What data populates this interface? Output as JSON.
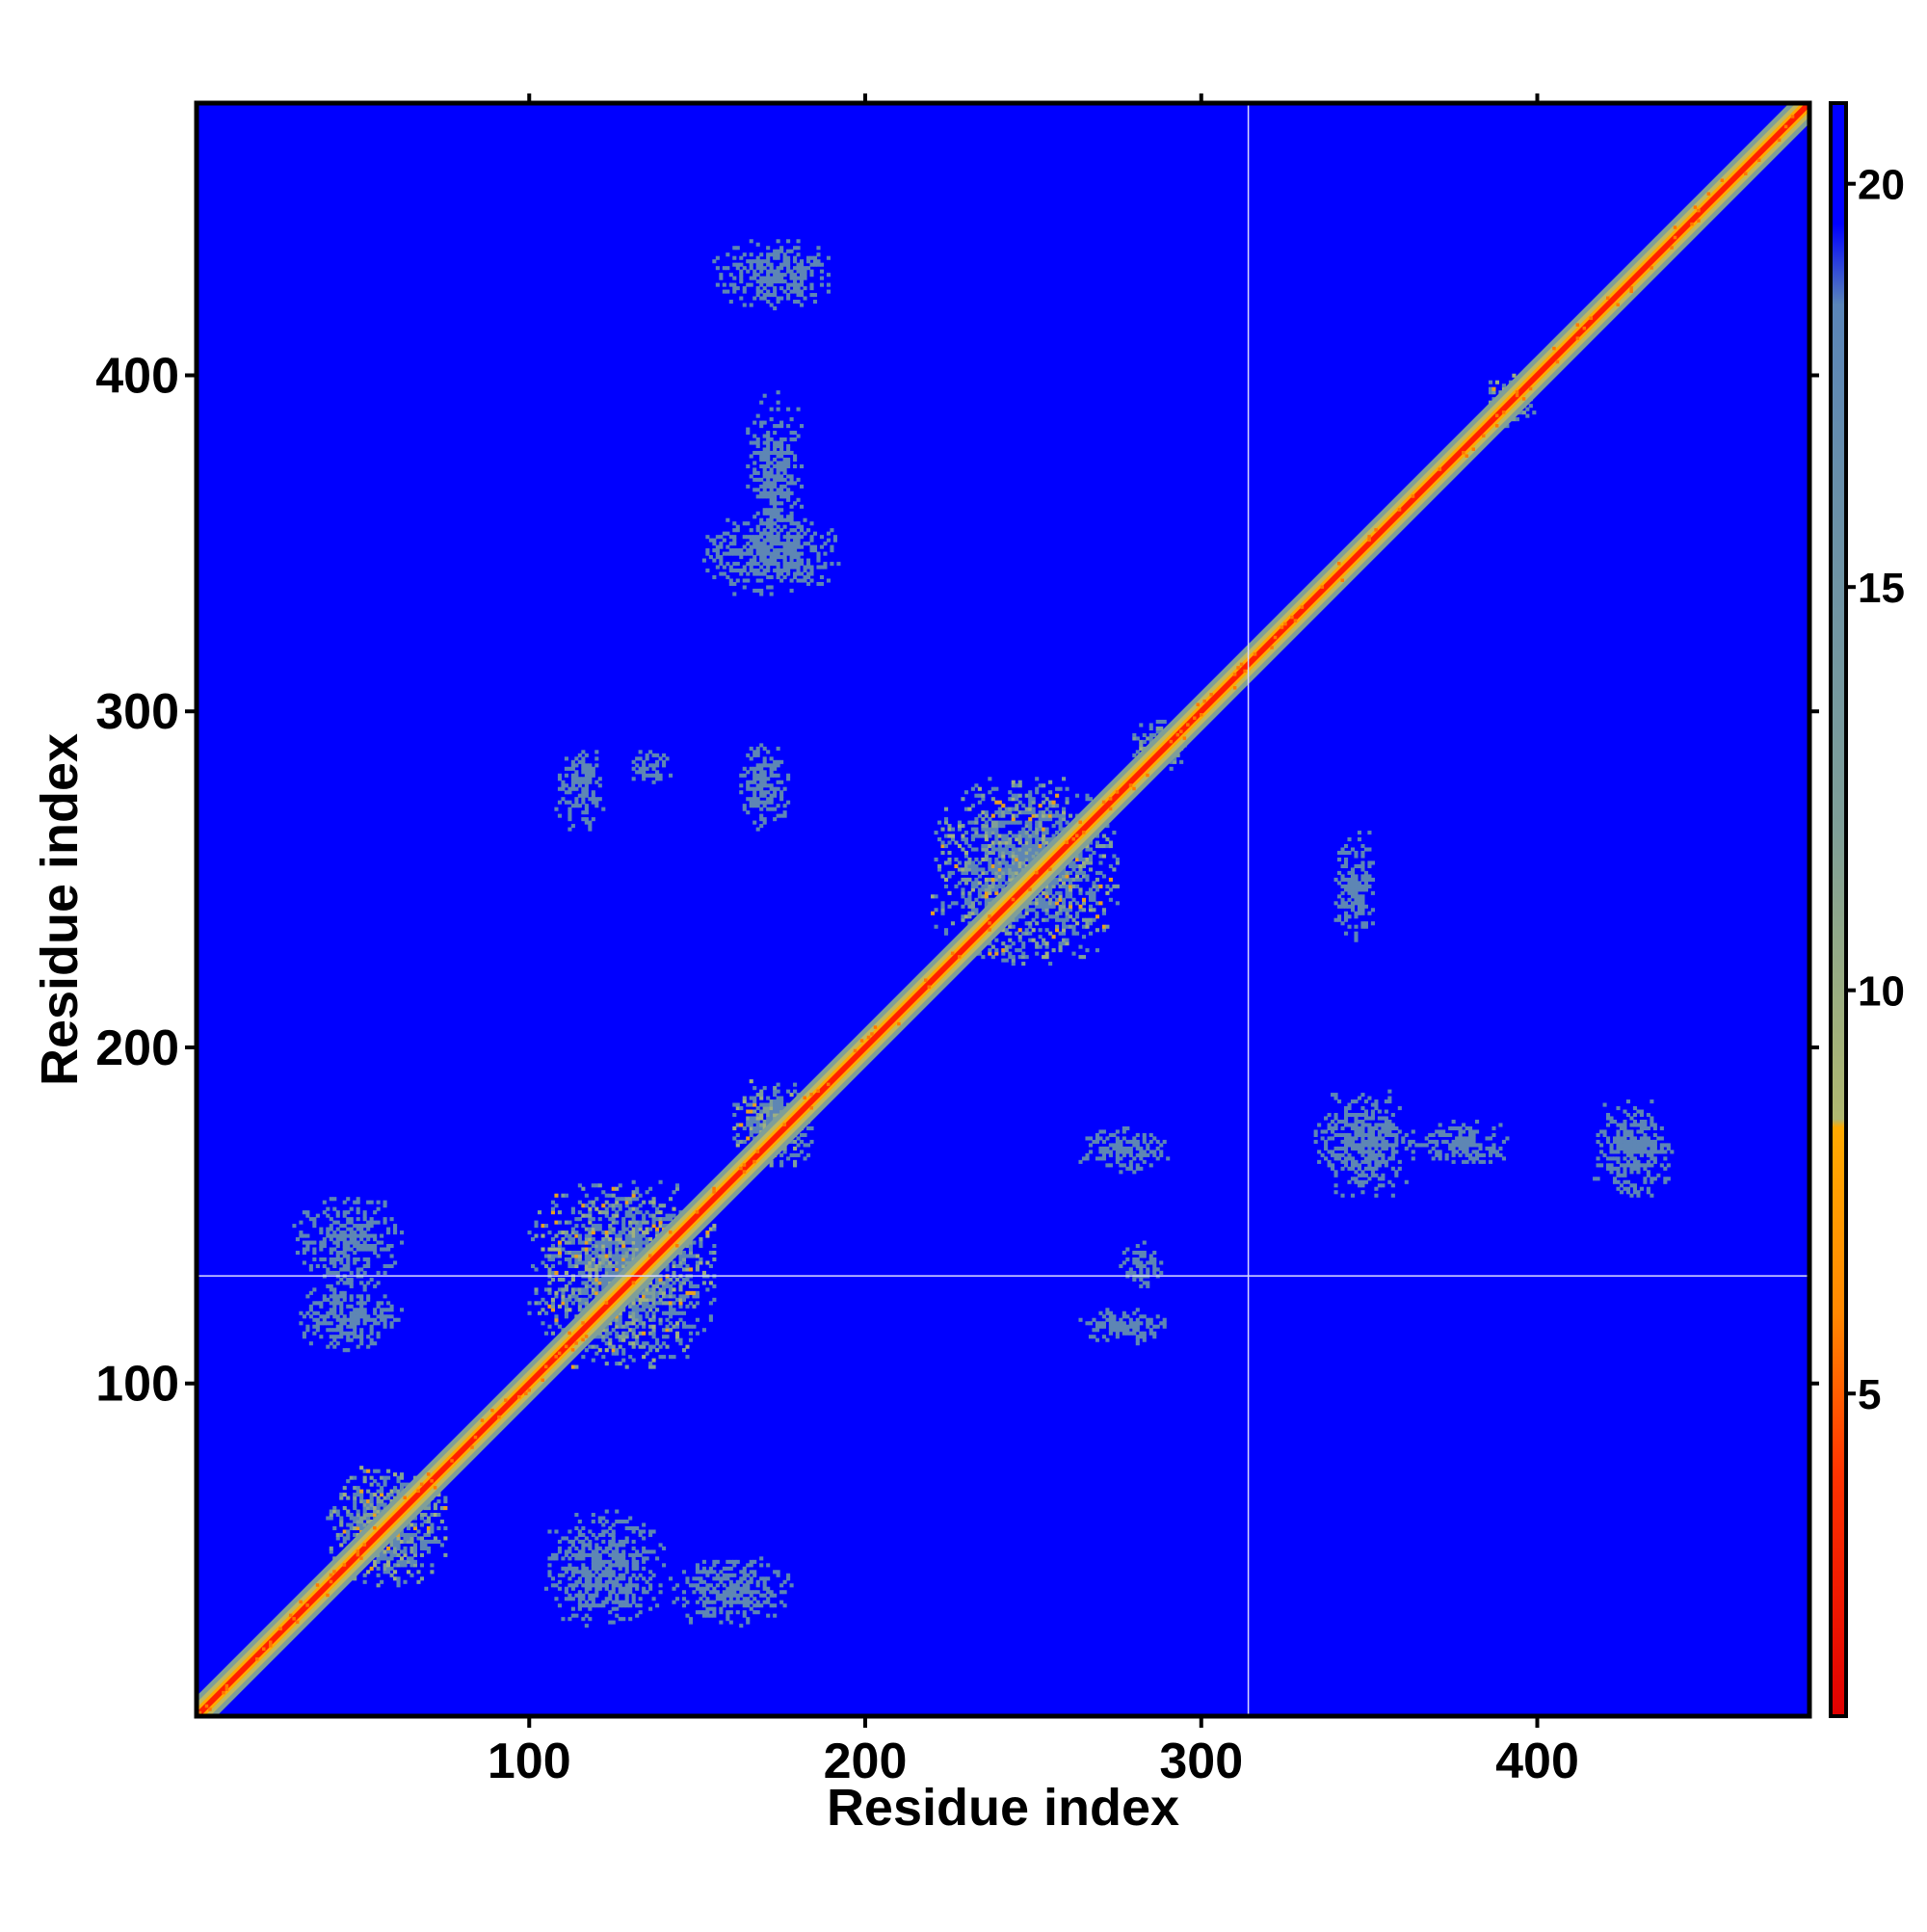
{
  "chart_data": {
    "type": "heatmap",
    "title": "",
    "xlabel": "Residue index",
    "ylabel": "Residue index",
    "xlim": [
      1,
      481
    ],
    "ylim": [
      1,
      481
    ],
    "x_ticks": [
      "100",
      "200",
      "300",
      "400"
    ],
    "y_ticks": [
      "100",
      "200",
      "300",
      "400"
    ],
    "colorbar": {
      "range": [
        1,
        21
      ],
      "ticks": [
        "5",
        "10",
        "15",
        "20"
      ],
      "colors": [
        {
          "value": 1,
          "color": "#e00000"
        },
        {
          "value": 4,
          "color": "#ff3300"
        },
        {
          "value": 6,
          "color": "#ff8800"
        },
        {
          "value": 8.3,
          "color": "#ffaa00"
        },
        {
          "value": 8.4,
          "color": "#b0b870"
        },
        {
          "value": 12,
          "color": "#7f9f98"
        },
        {
          "value": 16,
          "color": "#6a90a8"
        },
        {
          "value": 18.5,
          "color": "#5a85b8"
        },
        {
          "value": 19.5,
          "color": "#0000ff"
        },
        {
          "value": 21,
          "color": "#0000ff"
        }
      ]
    },
    "background_color": "#0000ff",
    "contact_color": "#5e86b4",
    "diagonal_color": "#ff2000",
    "reference_lines": {
      "x": 314,
      "y": 132,
      "color": "#dcdcff"
    },
    "dense_blocks": [
      {
        "x": [
          40,
          75
        ],
        "y": [
          40,
          75
        ]
      },
      {
        "x": [
          100,
          155
        ],
        "y": [
          105,
          160
        ]
      },
      {
        "x": [
          160,
          185
        ],
        "y": [
          165,
          190
        ]
      },
      {
        "x": [
          220,
          275
        ],
        "y": [
          225,
          280
        ]
      },
      {
        "x": [
          280,
          295
        ],
        "y": [
          283,
          297
        ]
      },
      {
        "x": [
          385,
          400
        ],
        "y": [
          385,
          400
        ]
      }
    ],
    "contact_clusters": [
      {
        "x": [
          30,
          62
        ],
        "y": [
          110,
          130
        ]
      },
      {
        "x": [
          30,
          62
        ],
        "y": [
          130,
          155
        ]
      },
      {
        "x": [
          105,
          140
        ],
        "y": [
          28,
          62
        ]
      },
      {
        "x": [
          142,
          178
        ],
        "y": [
          28,
          48
        ]
      },
      {
        "x": [
          108,
          122
        ],
        "y": [
          265,
          290
        ]
      },
      {
        "x": [
          130,
          142
        ],
        "y": [
          278,
          288
        ]
      },
      {
        "x": [
          163,
          177
        ],
        "y": [
          265,
          290
        ]
      },
      {
        "x": [
          152,
          192
        ],
        "y": [
          335,
          358
        ]
      },
      {
        "x": [
          165,
          182
        ],
        "y": [
          345,
          395
        ]
      },
      {
        "x": [
          155,
          190
        ],
        "y": [
          420,
          440
        ]
      },
      {
        "x": [
          264,
          290
        ],
        "y": [
          163,
          176
        ]
      },
      {
        "x": [
          264,
          290
        ],
        "y": [
          112,
          122
        ]
      },
      {
        "x": [
          276,
          288
        ],
        "y": [
          128,
          142
        ]
      },
      {
        "x": [
          334,
          362
        ],
        "y": [
          155,
          188
        ]
      },
      {
        "x": [
          362,
          392
        ],
        "y": [
          165,
          178
        ]
      },
      {
        "x": [
          417,
          440
        ],
        "y": [
          155,
          185
        ]
      },
      {
        "x": [
          340,
          352
        ],
        "y": [
          230,
          265
        ]
      }
    ]
  }
}
